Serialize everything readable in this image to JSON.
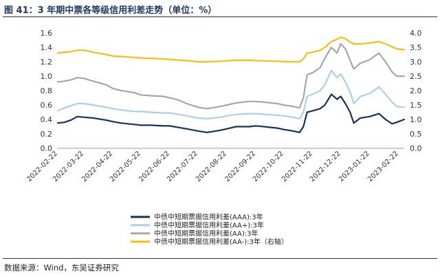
{
  "figure": {
    "title": "图 41：3 年期中票各等级信用利差走势（单位：%）",
    "source": "数据来源：Wind，东吴证券研究"
  },
  "chart_data": {
    "type": "line",
    "x_tick_labels": [
      "2022-02-22",
      "2022-03-22",
      "2022-04-22",
      "2022-05-22",
      "2022-06-22",
      "2022-07-22",
      "2022-08-22",
      "2022-09-22",
      "2022-10-22",
      "2022-11-22",
      "2022-12-22",
      "2023-01-22",
      "2023-02-22"
    ],
    "x_range": [
      "2022-02-22",
      "2023-02-28"
    ],
    "ylim_left": [
      0,
      1.6
    ],
    "ylim_right": [
      0,
      4.0
    ],
    "yticks_left": [
      "0.0",
      "0.2",
      "0.4",
      "0.6",
      "0.8",
      "1.0",
      "1.2",
      "1.4",
      "1.6"
    ],
    "yticks_right": [
      "0.0",
      "0.5",
      "1.0",
      "1.5",
      "2.0",
      "2.5",
      "3.0",
      "3.5",
      "4.0"
    ],
    "grid": false,
    "legend_position": "bottom",
    "series": [
      {
        "name": "中债中短期票据信用利差(AAA):3年",
        "axis": "left",
        "color": "#14305e",
        "data": [
          [
            "2022-02-22",
            0.35
          ],
          [
            "2022-03-01",
            0.36
          ],
          [
            "2022-03-08",
            0.39
          ],
          [
            "2022-03-15",
            0.44
          ],
          [
            "2022-03-22",
            0.43
          ],
          [
            "2022-04-01",
            0.42
          ],
          [
            "2022-04-15",
            0.39
          ],
          [
            "2022-04-22",
            0.37
          ],
          [
            "2022-05-01",
            0.35
          ],
          [
            "2022-05-15",
            0.33
          ],
          [
            "2022-05-22",
            0.32
          ],
          [
            "2022-06-01",
            0.32
          ],
          [
            "2022-06-15",
            0.31
          ],
          [
            "2022-06-22",
            0.31
          ],
          [
            "2022-07-01",
            0.29
          ],
          [
            "2022-07-10",
            0.27
          ],
          [
            "2022-07-22",
            0.24
          ],
          [
            "2022-08-01",
            0.22
          ],
          [
            "2022-08-15",
            0.25
          ],
          [
            "2022-08-22",
            0.27
          ],
          [
            "2022-09-01",
            0.3
          ],
          [
            "2022-09-15",
            0.3
          ],
          [
            "2022-09-22",
            0.31
          ],
          [
            "2022-10-01",
            0.3
          ],
          [
            "2022-10-15",
            0.28
          ],
          [
            "2022-10-22",
            0.26
          ],
          [
            "2022-11-01",
            0.24
          ],
          [
            "2022-11-08",
            0.22
          ],
          [
            "2022-11-12",
            0.3
          ],
          [
            "2022-11-16",
            0.5
          ],
          [
            "2022-11-22",
            0.52
          ],
          [
            "2022-11-30",
            0.55
          ],
          [
            "2022-12-05",
            0.6
          ],
          [
            "2022-12-12",
            0.75
          ],
          [
            "2022-12-18",
            0.68
          ],
          [
            "2022-12-22",
            0.72
          ],
          [
            "2022-12-27",
            0.62
          ],
          [
            "2023-01-01",
            0.5
          ],
          [
            "2023-01-05",
            0.35
          ],
          [
            "2023-01-12",
            0.42
          ],
          [
            "2023-01-22",
            0.44
          ],
          [
            "2023-02-01",
            0.48
          ],
          [
            "2023-02-08",
            0.4
          ],
          [
            "2023-02-15",
            0.34
          ],
          [
            "2023-02-20",
            0.36
          ],
          [
            "2023-02-28",
            0.4
          ]
        ]
      },
      {
        "name": "中债中短期票据信用利差(AA+):3年",
        "axis": "left",
        "color": "#a9cfe9",
        "data": [
          [
            "2022-02-22",
            0.52
          ],
          [
            "2022-03-01",
            0.56
          ],
          [
            "2022-03-08",
            0.59
          ],
          [
            "2022-03-15",
            0.62
          ],
          [
            "2022-03-22",
            0.62
          ],
          [
            "2022-04-01",
            0.6
          ],
          [
            "2022-04-15",
            0.57
          ],
          [
            "2022-04-22",
            0.55
          ],
          [
            "2022-05-01",
            0.53
          ],
          [
            "2022-05-15",
            0.51
          ],
          [
            "2022-05-22",
            0.51
          ],
          [
            "2022-06-01",
            0.5
          ],
          [
            "2022-06-15",
            0.49
          ],
          [
            "2022-06-22",
            0.49
          ],
          [
            "2022-07-01",
            0.47
          ],
          [
            "2022-07-10",
            0.45
          ],
          [
            "2022-07-22",
            0.42
          ],
          [
            "2022-08-01",
            0.41
          ],
          [
            "2022-08-15",
            0.43
          ],
          [
            "2022-08-22",
            0.45
          ],
          [
            "2022-09-01",
            0.47
          ],
          [
            "2022-09-15",
            0.48
          ],
          [
            "2022-09-22",
            0.48
          ],
          [
            "2022-10-01",
            0.47
          ],
          [
            "2022-10-15",
            0.46
          ],
          [
            "2022-10-22",
            0.45
          ],
          [
            "2022-11-01",
            0.43
          ],
          [
            "2022-11-08",
            0.41
          ],
          [
            "2022-11-12",
            0.5
          ],
          [
            "2022-11-16",
            0.72
          ],
          [
            "2022-11-22",
            0.75
          ],
          [
            "2022-11-30",
            0.8
          ],
          [
            "2022-12-05",
            0.88
          ],
          [
            "2022-12-12",
            1.08
          ],
          [
            "2022-12-18",
            0.98
          ],
          [
            "2022-12-22",
            1.03
          ],
          [
            "2022-12-27",
            0.92
          ],
          [
            "2023-01-01",
            0.78
          ],
          [
            "2023-01-05",
            0.62
          ],
          [
            "2023-01-12",
            0.72
          ],
          [
            "2023-01-22",
            0.76
          ],
          [
            "2023-02-01",
            0.85
          ],
          [
            "2023-02-08",
            0.75
          ],
          [
            "2023-02-15",
            0.64
          ],
          [
            "2023-02-20",
            0.58
          ],
          [
            "2023-02-28",
            0.57
          ]
        ]
      },
      {
        "name": "中债中短期票据信用利差(AA):3年",
        "axis": "left",
        "color": "#a6a6a6",
        "data": [
          [
            "2022-02-22",
            0.92
          ],
          [
            "2022-03-01",
            0.93
          ],
          [
            "2022-03-08",
            0.95
          ],
          [
            "2022-03-15",
            0.98
          ],
          [
            "2022-03-22",
            0.97
          ],
          [
            "2022-04-01",
            0.93
          ],
          [
            "2022-04-15",
            0.88
          ],
          [
            "2022-04-22",
            0.83
          ],
          [
            "2022-05-01",
            0.8
          ],
          [
            "2022-05-15",
            0.77
          ],
          [
            "2022-05-22",
            0.74
          ],
          [
            "2022-06-01",
            0.73
          ],
          [
            "2022-06-15",
            0.72
          ],
          [
            "2022-06-22",
            0.7
          ],
          [
            "2022-07-01",
            0.67
          ],
          [
            "2022-07-10",
            0.62
          ],
          [
            "2022-07-22",
            0.57
          ],
          [
            "2022-08-01",
            0.55
          ],
          [
            "2022-08-15",
            0.58
          ],
          [
            "2022-08-22",
            0.6
          ],
          [
            "2022-09-01",
            0.63
          ],
          [
            "2022-09-15",
            0.65
          ],
          [
            "2022-09-22",
            0.65
          ],
          [
            "2022-10-01",
            0.64
          ],
          [
            "2022-10-15",
            0.62
          ],
          [
            "2022-10-22",
            0.6
          ],
          [
            "2022-11-01",
            0.58
          ],
          [
            "2022-11-08",
            0.56
          ],
          [
            "2022-11-12",
            0.7
          ],
          [
            "2022-11-16",
            1.02
          ],
          [
            "2022-11-22",
            1.05
          ],
          [
            "2022-11-30",
            1.12
          ],
          [
            "2022-12-05",
            1.25
          ],
          [
            "2022-12-12",
            1.4
          ],
          [
            "2022-12-18",
            1.32
          ],
          [
            "2022-12-22",
            1.45
          ],
          [
            "2022-12-27",
            1.38
          ],
          [
            "2023-01-01",
            1.22
          ],
          [
            "2023-01-05",
            1.1
          ],
          [
            "2023-01-12",
            1.18
          ],
          [
            "2023-01-22",
            1.23
          ],
          [
            "2023-02-01",
            1.32
          ],
          [
            "2023-02-08",
            1.2
          ],
          [
            "2023-02-15",
            1.06
          ],
          [
            "2023-02-20",
            1.0
          ],
          [
            "2023-02-28",
            1.0
          ]
        ]
      },
      {
        "name": "中债中短期票据信用利差(AA-):3年（右轴）",
        "axis": "right",
        "color": "#fcbc0e",
        "data": [
          [
            "2022-02-22",
            3.3
          ],
          [
            "2022-03-01",
            3.33
          ],
          [
            "2022-03-08",
            3.35
          ],
          [
            "2022-03-15",
            3.4
          ],
          [
            "2022-03-22",
            3.4
          ],
          [
            "2022-04-01",
            3.33
          ],
          [
            "2022-04-15",
            3.25
          ],
          [
            "2022-04-22",
            3.2
          ],
          [
            "2022-05-01",
            3.18
          ],
          [
            "2022-05-15",
            3.15
          ],
          [
            "2022-05-22",
            3.13
          ],
          [
            "2022-06-01",
            3.12
          ],
          [
            "2022-06-15",
            3.1
          ],
          [
            "2022-06-22",
            3.08
          ],
          [
            "2022-07-01",
            3.06
          ],
          [
            "2022-07-10",
            3.04
          ],
          [
            "2022-07-22",
            3.0
          ],
          [
            "2022-08-01",
            3.0
          ],
          [
            "2022-08-15",
            3.02
          ],
          [
            "2022-08-22",
            3.03
          ],
          [
            "2022-09-01",
            3.05
          ],
          [
            "2022-09-15",
            3.05
          ],
          [
            "2022-09-22",
            3.04
          ],
          [
            "2022-10-01",
            3.03
          ],
          [
            "2022-10-15",
            3.02
          ],
          [
            "2022-10-22",
            3.01
          ],
          [
            "2022-11-01",
            3.0
          ],
          [
            "2022-11-08",
            3.0
          ],
          [
            "2022-11-12",
            3.1
          ],
          [
            "2022-11-16",
            3.3
          ],
          [
            "2022-11-22",
            3.33
          ],
          [
            "2022-11-30",
            3.4
          ],
          [
            "2022-12-05",
            3.5
          ],
          [
            "2022-12-12",
            3.7
          ],
          [
            "2022-12-18",
            3.78
          ],
          [
            "2022-12-22",
            3.85
          ],
          [
            "2022-12-27",
            3.8
          ],
          [
            "2023-01-01",
            3.68
          ],
          [
            "2023-01-05",
            3.62
          ],
          [
            "2023-01-12",
            3.62
          ],
          [
            "2023-01-22",
            3.65
          ],
          [
            "2023-02-01",
            3.7
          ],
          [
            "2023-02-08",
            3.62
          ],
          [
            "2023-02-15",
            3.52
          ],
          [
            "2023-02-20",
            3.45
          ],
          [
            "2023-02-28",
            3.42
          ]
        ]
      }
    ]
  }
}
